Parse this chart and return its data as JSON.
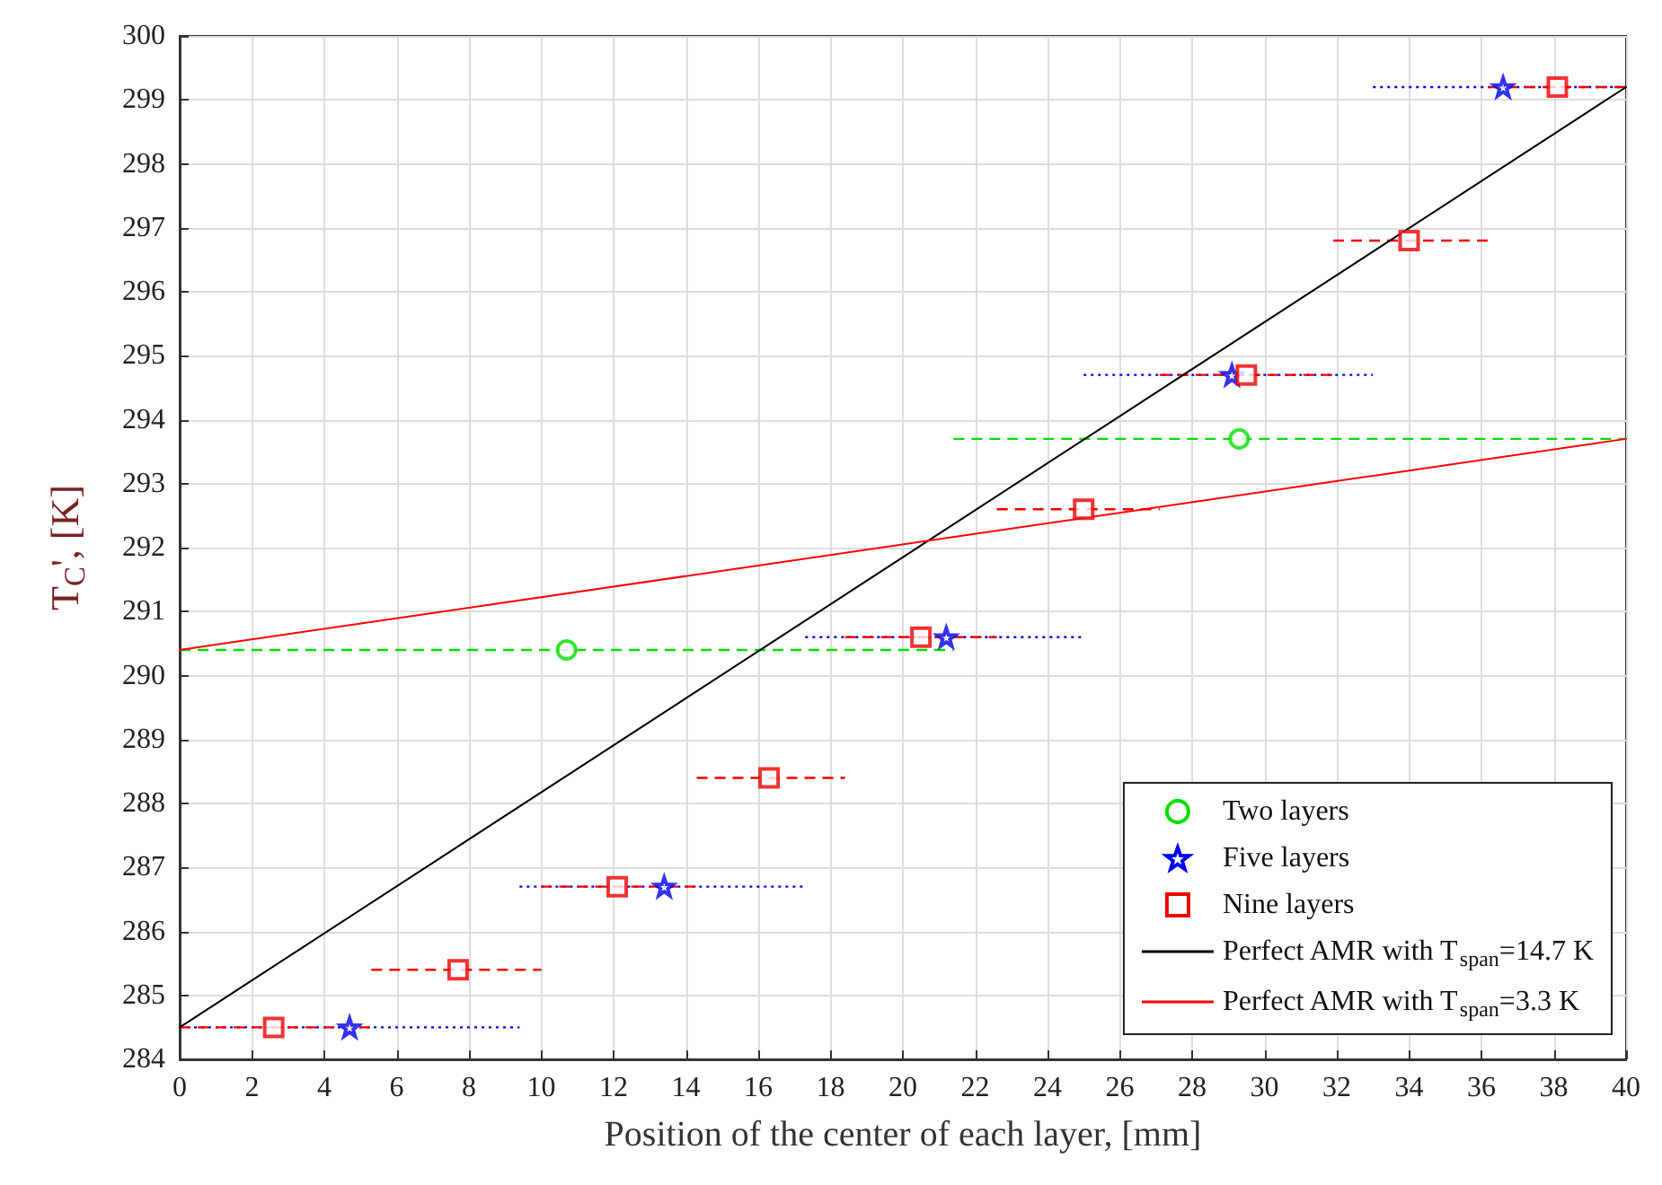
{
  "chart_data": {
    "type": "scatter",
    "xlabel": "Position of the center of each layer, [mm]",
    "ylabel": "T$_{C}$', [K]",
    "xlim": [
      0,
      40
    ],
    "xticks": [
      0,
      2,
      4,
      6,
      8,
      10,
      12,
      14,
      16,
      18,
      20,
      22,
      24,
      26,
      28,
      30,
      32,
      34,
      36,
      38,
      40
    ],
    "ylim": [
      284,
      300
    ],
    "yticks": [
      284,
      285,
      286,
      287,
      288,
      289,
      290,
      291,
      292,
      293,
      294,
      295,
      296,
      297,
      298,
      299,
      300
    ],
    "grid": true,
    "legend": "bottom right",
    "series": [
      {
        "name": "Two layers",
        "marker": "circle",
        "line_style": "dashed",
        "color": "#00dd00",
        "x": [
          10.7,
          29.3
        ],
        "values": [
          290.4,
          293.7
        ],
        "xerrors": [
          [
            0,
            21.4
          ],
          [
            21.4,
            40
          ]
        ]
      },
      {
        "name": "Five layers",
        "marker": "star",
        "line_style": "dotted",
        "color": "#0000ee",
        "x": [
          4.7,
          13.4,
          21.2,
          29.1,
          36.6
        ],
        "values": [
          284.5,
          286.7,
          290.6,
          294.7,
          299.2
        ],
        "xerrors": [
          [
            0,
            9.4
          ],
          [
            9.4,
            17.3
          ],
          [
            17.3,
            25
          ],
          [
            25,
            33
          ],
          [
            33,
            40
          ]
        ]
      },
      {
        "name": "Nine layers",
        "marker": "square",
        "line_style": "dashed",
        "color": "#ee0000",
        "x": [
          2.6,
          7.7,
          12.1,
          16.3,
          20.5,
          25,
          29.5,
          34,
          38.1
        ],
        "values": [
          284.5,
          285.4,
          286.7,
          288.4,
          290.6,
          292.6,
          294.7,
          296.8,
          299.2
        ],
        "xerrors": [
          [
            0,
            5.3
          ],
          [
            5.3,
            10
          ],
          [
            10,
            14.3
          ],
          [
            14.3,
            18.4
          ],
          [
            18.4,
            22.6
          ],
          [
            22.6,
            27.1
          ],
          [
            27.1,
            31.9
          ],
          [
            31.9,
            36.2
          ],
          [
            36.2,
            40
          ]
        ]
      },
      {
        "name": "Perfect AMR with T$_{span}$=14.7 K",
        "type": "line",
        "marker": "none",
        "line_style": "solid",
        "color": "#000000",
        "x": [
          0,
          40
        ],
        "values": [
          284.5,
          299.2
        ]
      },
      {
        "name": "Perfect AMR with T$_{span}$=3.3 K",
        "type": "line",
        "marker": "none",
        "line_style": "solid",
        "color": "#ff0000",
        "x": [
          0,
          40
        ],
        "values": [
          290.4,
          293.7
        ]
      }
    ]
  }
}
